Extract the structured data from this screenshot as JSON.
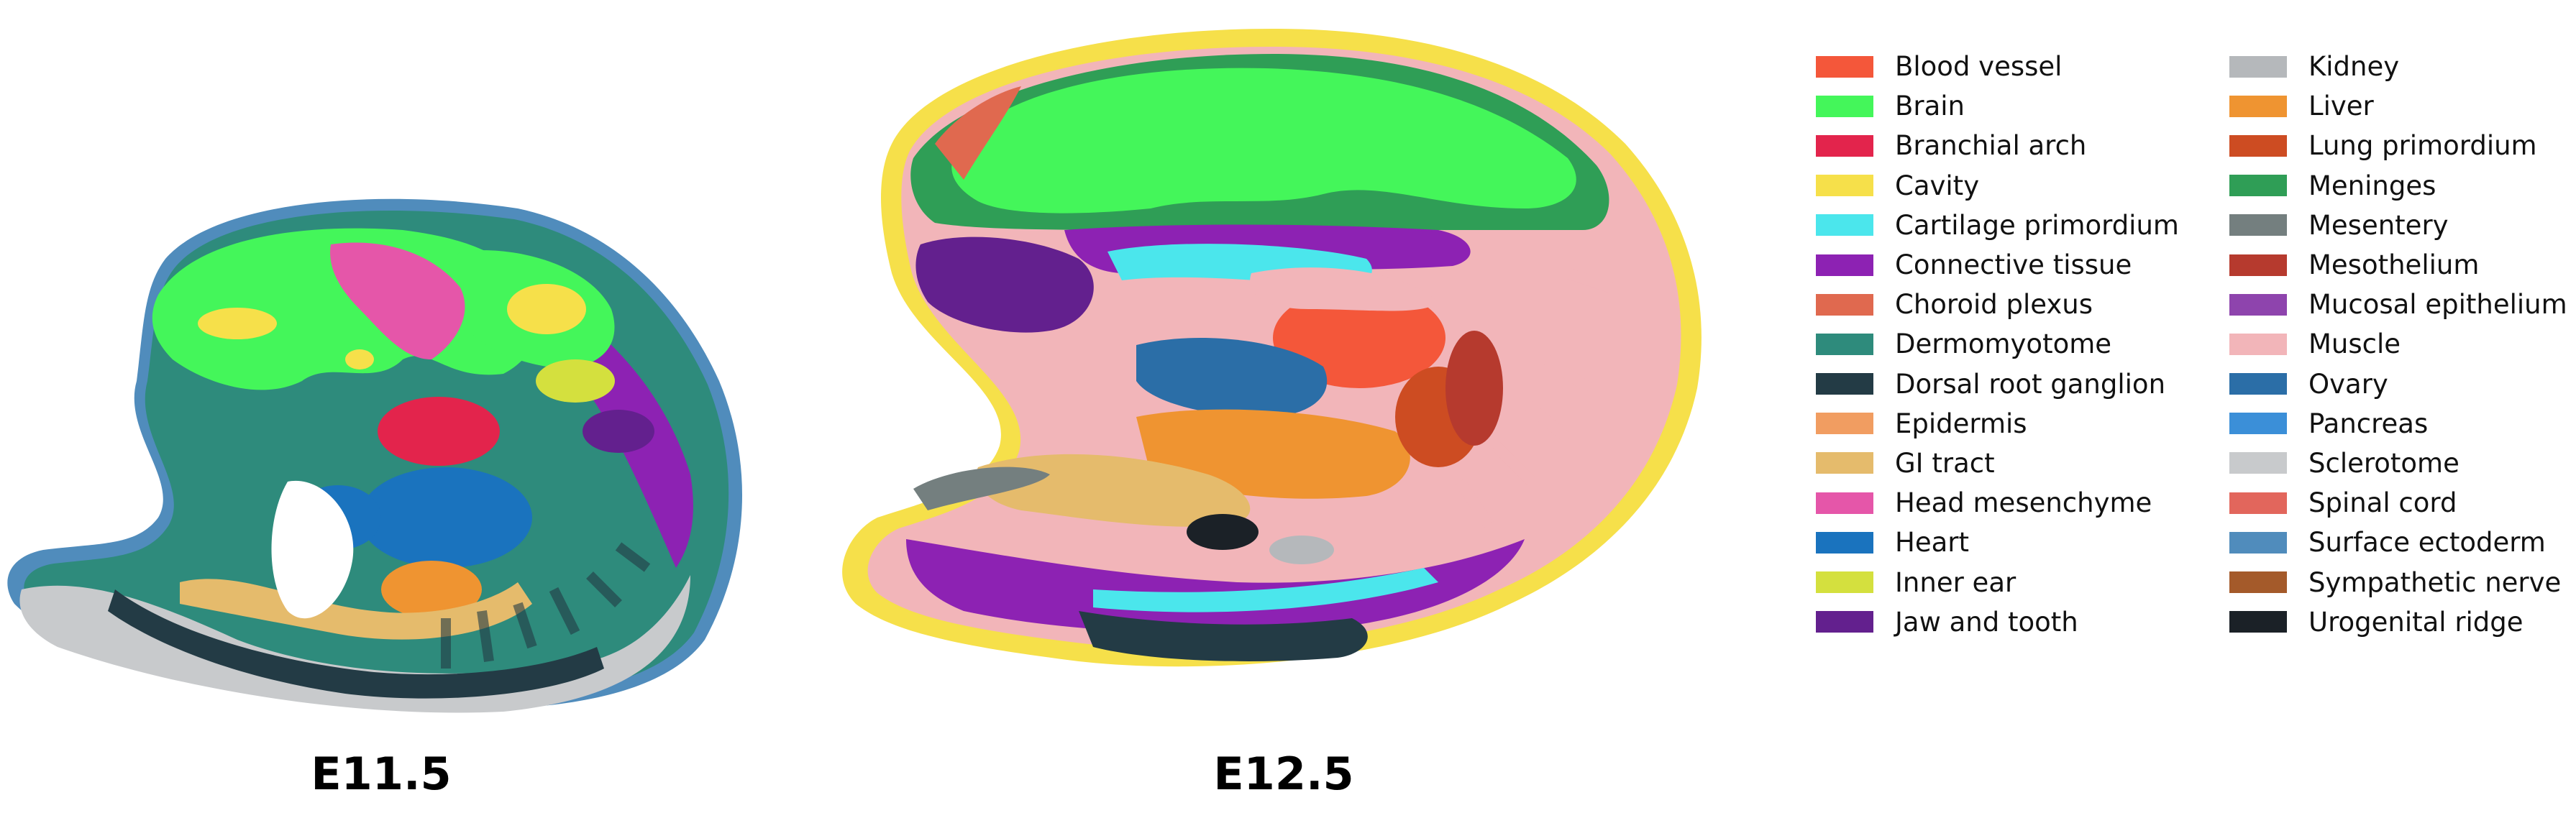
{
  "panels": [
    {
      "label": "E11.5"
    },
    {
      "label": "E12.5"
    }
  ],
  "legend": {
    "columns": [
      [
        {
          "label": "Blood vessel",
          "color": "#f4573a"
        },
        {
          "label": "Brain",
          "color": "#44f65a"
        },
        {
          "label": "Branchial arch",
          "color": "#e3244c"
        },
        {
          "label": "Cavity",
          "color": "#f6e04a"
        },
        {
          "label": "Cartilage primordium",
          "color": "#4be6ec"
        },
        {
          "label": "Connective tissue",
          "color": "#8d22b3"
        },
        {
          "label": "Choroid plexus",
          "color": "#e0694f"
        },
        {
          "label": "Dermomyotome",
          "color": "#2e8b7c"
        },
        {
          "label": "Dorsal root ganglion",
          "color": "#233b45"
        },
        {
          "label": "Epidermis",
          "color": "#f19d61"
        },
        {
          "label": "GI tract",
          "color": "#e5bb6c"
        },
        {
          "label": "Head mesenchyme",
          "color": "#e556a9"
        },
        {
          "label": "Heart",
          "color": "#1a73be"
        },
        {
          "label": "Inner ear",
          "color": "#d4e03e"
        },
        {
          "label": "Jaw and tooth",
          "color": "#63208e"
        }
      ],
      [
        {
          "label": "Kidney",
          "color": "#b5b8bb"
        },
        {
          "label": "Liver",
          "color": "#ef9431"
        },
        {
          "label": "Lung primordium",
          "color": "#cd4c22"
        },
        {
          "label": "Meninges",
          "color": "#2f9e56"
        },
        {
          "label": "Mesentery",
          "color": "#747f7f"
        },
        {
          "label": "Mesothelium",
          "color": "#b63a2e"
        },
        {
          "label": "Mucosal epithelium",
          "color": "#8e44ad"
        },
        {
          "label": "Muscle",
          "color": "#f2b5b9"
        },
        {
          "label": "Ovary",
          "color": "#2b6ea7"
        },
        {
          "label": "Pancreas",
          "color": "#3b8fd8"
        },
        {
          "label": "Sclerotome",
          "color": "#c8cacc"
        },
        {
          "label": "Spinal cord",
          "color": "#e2665c"
        },
        {
          "label": "Surface ectoderm",
          "color": "#508cbc"
        },
        {
          "label": "Sympathetic nerve",
          "color": "#a45a2a"
        },
        {
          "label": "Urogenital ridge",
          "color": "#1b2127"
        }
      ]
    ]
  }
}
